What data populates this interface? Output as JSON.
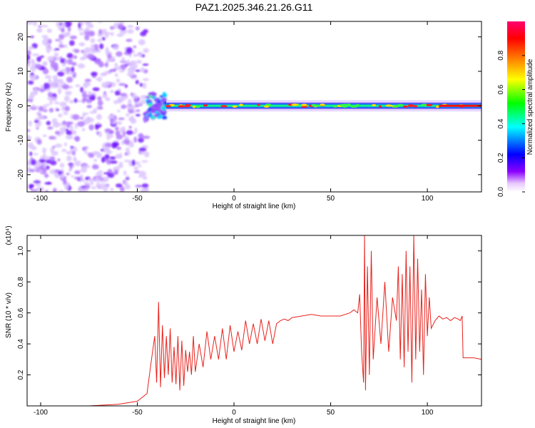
{
  "title": "PAZ1.2025.346.21.26.G11",
  "chart_data": [
    {
      "type": "heatmap",
      "name": "spectrogram",
      "xlabel": "Height of straight line (km)",
      "ylabel": "Frequency (Hz)",
      "xlim": [
        -107,
        128
      ],
      "ylim": [
        -25,
        24.5
      ],
      "xticks": [
        -100,
        -50,
        0,
        50,
        100
      ],
      "yticks": [
        -20,
        -10,
        0,
        10,
        20
      ],
      "colorbar": {
        "label": "Normalized spectral amplitude",
        "range": [
          0,
          1
        ],
        "ticks": [
          0.0,
          0.2,
          0.4,
          0.6,
          0.8
        ],
        "colormap": [
          "#ffffff",
          "#8b00ff",
          "#0000ff",
          "#00ffff",
          "#00ff00",
          "#ffff00",
          "#ff7f00",
          "#ff0000",
          "#ff0080"
        ]
      },
      "regions": [
        {
          "x": [
            -107,
            -45
          ],
          "pattern": "diffuse noise speckle",
          "amplitude": [
            0.0,
            0.15
          ]
        },
        {
          "x": [
            -45,
            -35
          ],
          "pattern": "onset of carrier near 0 Hz",
          "amplitude": [
            0.2,
            0.5
          ]
        },
        {
          "x": [
            -35,
            128
          ],
          "pattern": "narrow carrier line near 0 Hz",
          "amplitude": [
            0.5,
            1.0
          ]
        }
      ]
    },
    {
      "type": "line",
      "name": "snr",
      "xlabel": "Height of straight line (km)",
      "ylabel": "SNR (10 * v/v)",
      "y_multiplier": "(x10⁴)",
      "xlim": [
        -107,
        128
      ],
      "ylim": [
        0.0,
        1.1
      ],
      "xticks": [
        -100,
        -50,
        0,
        50,
        100
      ],
      "yticks": [
        0.2,
        0.4,
        0.6,
        0.8,
        1.0
      ],
      "color": "#e8221c",
      "series": [
        {
          "name": "SNR",
          "x": [
            -107,
            -90,
            -75,
            -60,
            -50,
            -45,
            -43,
            -41,
            -40,
            -39,
            -38,
            -37,
            -36,
            -35,
            -34,
            -33,
            -32,
            -31,
            -30,
            -29,
            -28,
            -27,
            -26,
            -25,
            -24,
            -23,
            -22,
            -21,
            -20,
            -18,
            -16,
            -14,
            -12,
            -10,
            -8,
            -6,
            -4,
            -2,
            0,
            2,
            4,
            6,
            8,
            10,
            12,
            14,
            16,
            18,
            20,
            22,
            24,
            26,
            28,
            30,
            35,
            40,
            45,
            50,
            55,
            60,
            62,
            64,
            65,
            66,
            67,
            67.5,
            68,
            69,
            70,
            71,
            72,
            74,
            76,
            78,
            80,
            82,
            84,
            85,
            86,
            87,
            88,
            89,
            90,
            91,
            92,
            93,
            94,
            95,
            96,
            97,
            98,
            99,
            100,
            101,
            102,
            104,
            106,
            108,
            110,
            112,
            114,
            116,
            117,
            118,
            118.5,
            120,
            124,
            128
          ],
          "y": [
            0.0,
            0.0,
            0.0,
            0.01,
            0.03,
            0.08,
            0.27,
            0.45,
            0.15,
            0.67,
            0.12,
            0.52,
            0.18,
            0.45,
            0.2,
            0.5,
            0.15,
            0.38,
            0.14,
            0.45,
            0.1,
            0.42,
            0.13,
            0.36,
            0.22,
            0.35,
            0.2,
            0.45,
            0.22,
            0.4,
            0.25,
            0.48,
            0.3,
            0.45,
            0.3,
            0.5,
            0.3,
            0.52,
            0.35,
            0.48,
            0.36,
            0.55,
            0.4,
            0.53,
            0.4,
            0.56,
            0.42,
            0.55,
            0.4,
            0.53,
            0.55,
            0.56,
            0.55,
            0.57,
            0.58,
            0.59,
            0.58,
            0.58,
            0.58,
            0.6,
            0.62,
            0.6,
            0.72,
            0.35,
            0.15,
            1.1,
            0.1,
            0.9,
            0.2,
            1.0,
            0.3,
            0.7,
            0.4,
            0.8,
            0.35,
            0.7,
            0.55,
            0.9,
            0.3,
            0.85,
            0.25,
            1.0,
            0.35,
            0.9,
            0.15,
            1.1,
            0.3,
            0.95,
            0.35,
            0.75,
            0.2,
            0.85,
            0.45,
            0.7,
            0.5,
            0.55,
            0.58,
            0.56,
            0.57,
            0.55,
            0.57,
            0.56,
            0.55,
            0.58,
            0.31,
            0.31,
            0.31,
            0.3
          ]
        }
      ]
    }
  ]
}
